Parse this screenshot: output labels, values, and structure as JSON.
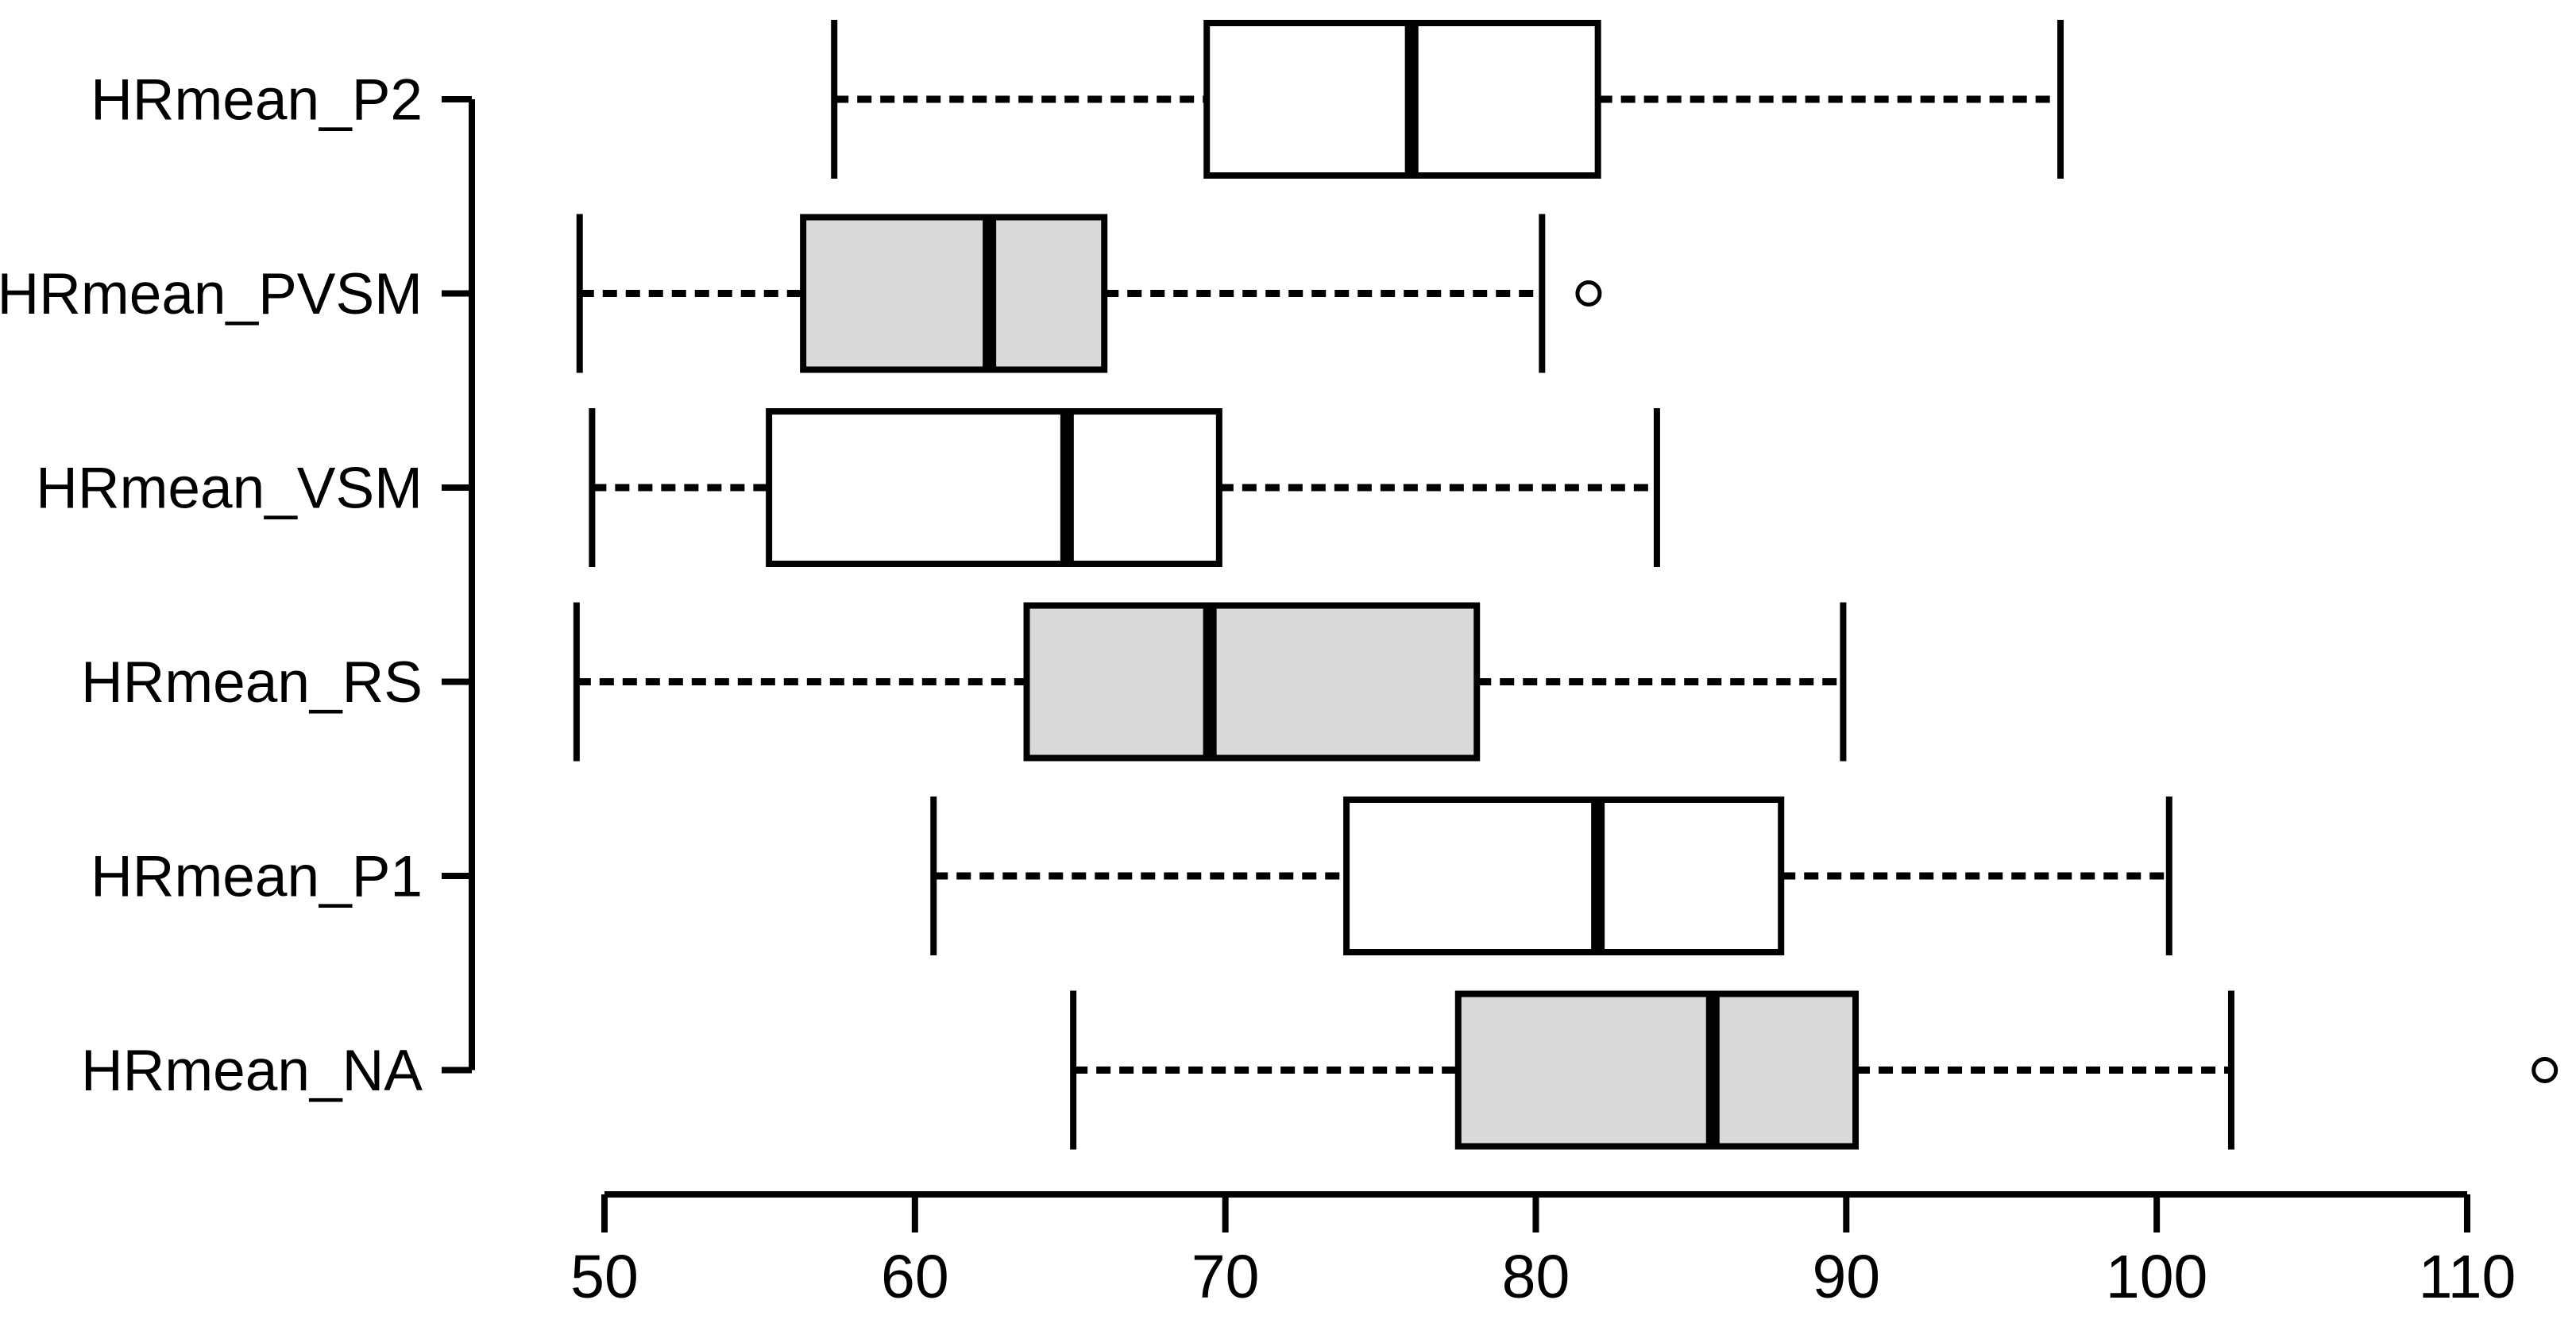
{
  "figure": {
    "background": "#ffffff"
  },
  "chart_data": {
    "type": "boxplot",
    "orientation": "horizontal",
    "title": "",
    "xlabel": "",
    "ylabel": "",
    "xlim": [
      50,
      110
    ],
    "x_ticks": [
      50,
      60,
      70,
      80,
      90,
      100,
      110
    ],
    "grid": false,
    "legend_position": "none",
    "categories": [
      "HRmean_P2",
      "HRmean_PVSM",
      "HRmean_VSM",
      "HRmean_RS",
      "HRmean_P1",
      "HRmean_NA"
    ],
    "series": [
      {
        "name": "HRmean_P2",
        "whisker_low": 57.4,
        "q1": 69.4,
        "median": 76.0,
        "q3": 82.0,
        "whisker_high": 96.9,
        "outliers": [],
        "box_fill": "#ffffff"
      },
      {
        "name": "HRmean_PVSM",
        "whisker_low": 49.2,
        "q1": 56.4,
        "median": 62.4,
        "q3": 66.1,
        "whisker_high": 80.2,
        "outliers": [
          81.7
        ],
        "box_fill": "#d9d9d9"
      },
      {
        "name": "HRmean_VSM",
        "whisker_low": 49.6,
        "q1": 55.3,
        "median": 64.9,
        "q3": 69.8,
        "whisker_high": 83.9,
        "outliers": [],
        "box_fill": "#ffffff"
      },
      {
        "name": "HRmean_RS",
        "whisker_low": 49.1,
        "q1": 63.6,
        "median": 69.5,
        "q3": 78.1,
        "whisker_high": 89.9,
        "outliers": [],
        "box_fill": "#d9d9d9"
      },
      {
        "name": "HRmean_P1",
        "whisker_low": 60.6,
        "q1": 73.9,
        "median": 82.0,
        "q3": 87.9,
        "whisker_high": 100.4,
        "outliers": [],
        "box_fill": "#ffffff"
      },
      {
        "name": "HRmean_NA",
        "whisker_low": 65.1,
        "q1": 77.5,
        "median": 85.7,
        "q3": 90.3,
        "whisker_high": 102.4,
        "outliers": [
          112.5
        ],
        "box_fill": "#d9d9d9"
      }
    ],
    "colors": {
      "stroke": "#000000",
      "gray_fill": "#d9d9d9",
      "white_fill": "#ffffff",
      "background": "#ffffff"
    }
  }
}
